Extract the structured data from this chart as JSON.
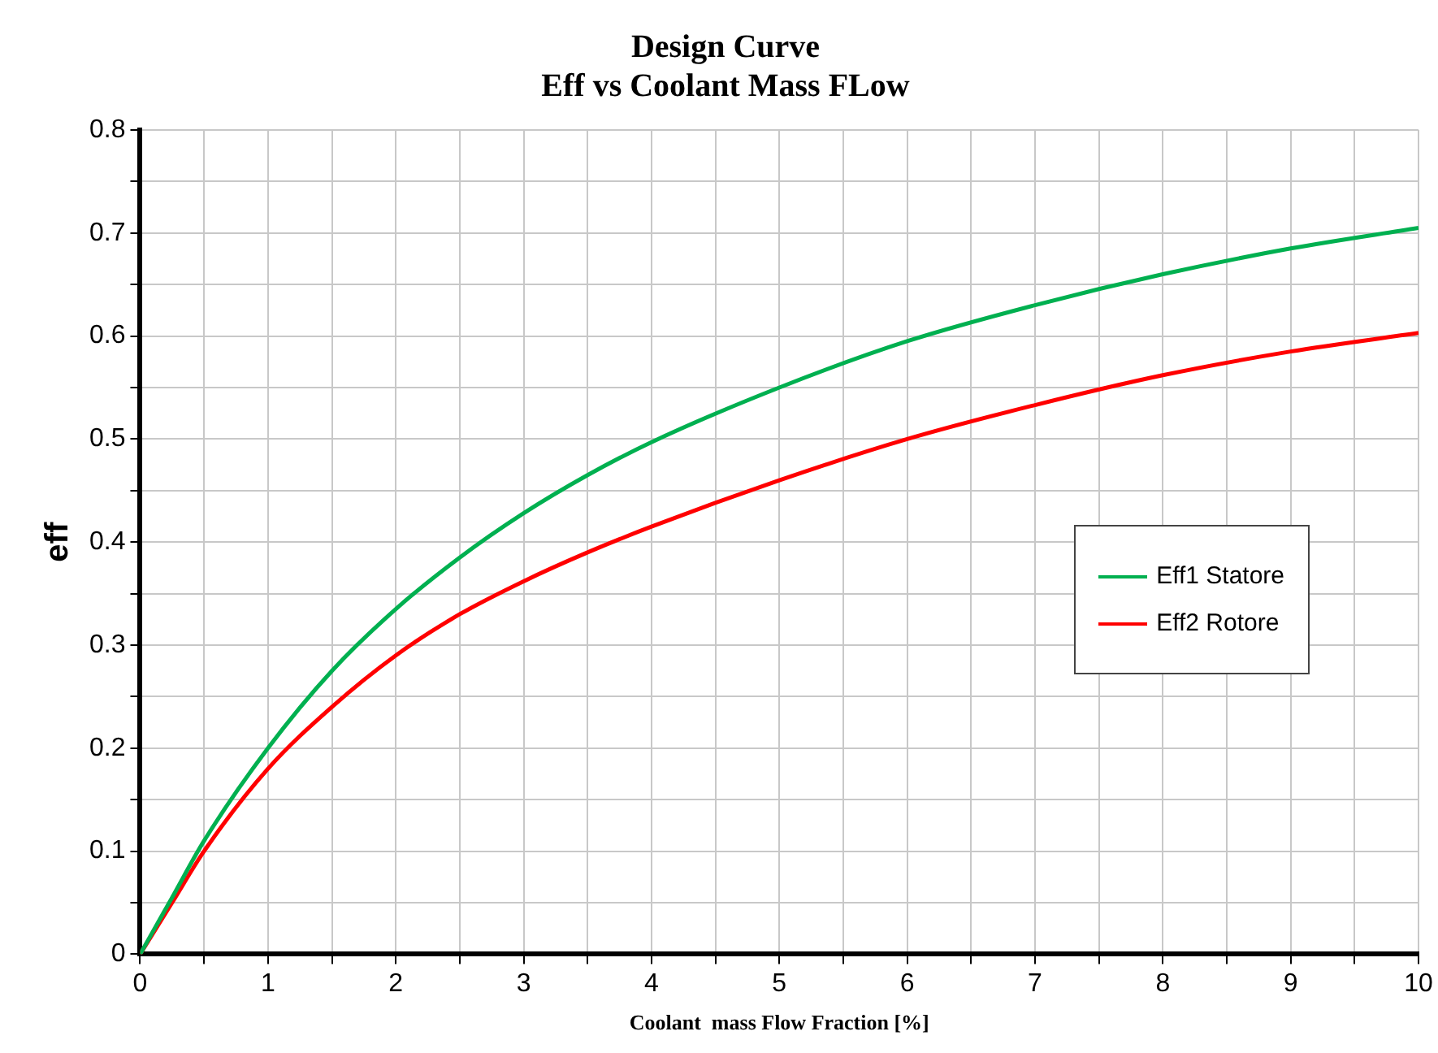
{
  "chart_data": {
    "type": "line",
    "title": [
      "Design Curve",
      "Eff vs Coolant Mass FLow"
    ],
    "xlabel": "Coolant  mass Flow Fraction [%]",
    "ylabel": "eff",
    "x": [
      0,
      0.25,
      0.5,
      1,
      1.5,
      2,
      2.5,
      3,
      3.5,
      4,
      5,
      6,
      7,
      8,
      9,
      10
    ],
    "series": [
      {
        "name": "Eff1 Statore",
        "color": "#00b050",
        "values": [
          0,
          0.055,
          0.11,
          0.2,
          0.275,
          0.335,
          0.385,
          0.428,
          0.465,
          0.497,
          0.55,
          0.595,
          0.63,
          0.66,
          0.685,
          0.705
        ]
      },
      {
        "name": "Eff2 Rotore",
        "color": "#ff0000",
        "values": [
          0,
          0.05,
          0.1,
          0.18,
          0.24,
          0.29,
          0.33,
          0.362,
          0.39,
          0.415,
          0.46,
          0.5,
          0.533,
          0.562,
          0.585,
          0.603
        ]
      }
    ],
    "xlim": [
      0,
      10
    ],
    "ylim": [
      0,
      0.8
    ],
    "xticks": [
      0,
      {
        "value": 0.5,
        "label": null
      },
      1,
      {
        "value": 1.5,
        "label": null
      },
      2,
      {
        "value": 2.5,
        "label": null
      },
      3,
      {
        "value": 3.5,
        "label": null
      },
      4,
      {
        "value": 4.5,
        "label": null
      },
      5,
      {
        "value": 5.5,
        "label": null
      },
      6,
      {
        "value": 6.5,
        "label": null
      },
      7,
      {
        "value": 7.5,
        "label": null
      },
      8,
      {
        "value": 8.5,
        "label": null
      },
      9,
      {
        "value": 9.5,
        "label": null
      },
      10
    ],
    "yticks": [
      0,
      {
        "value": 0.05,
        "label": null
      },
      0.1,
      {
        "value": 0.15,
        "label": null
      },
      0.2,
      {
        "value": 0.25,
        "label": null
      },
      0.3,
      {
        "value": 0.35,
        "label": null
      },
      0.4,
      {
        "value": 0.45,
        "label": null
      },
      0.5,
      {
        "value": 0.55,
        "label": null
      },
      0.6,
      {
        "value": 0.65,
        "label": null
      },
      0.7,
      {
        "value": 0.75,
        "label": null
      },
      0.8
    ],
    "grid": true,
    "legend": "right",
    "marker": "none",
    "line_style": "solid"
  }
}
